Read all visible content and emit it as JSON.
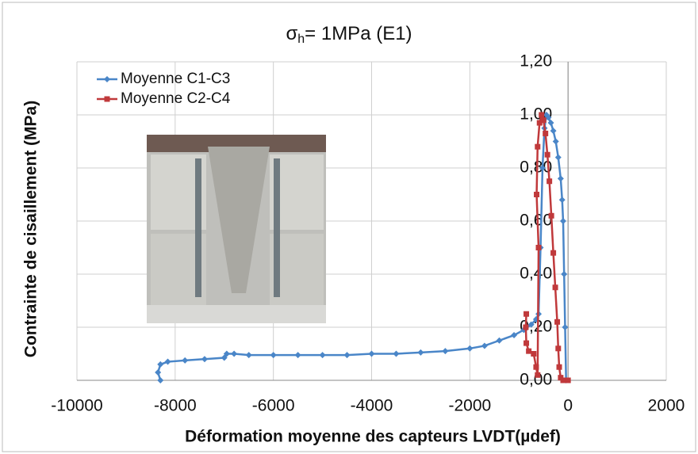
{
  "chart_data": {
    "type": "line",
    "title": "σ",
    "title_subscript": "h",
    "title_rest": "= 1MPa (E1)",
    "xlabel": "Déformation moyenne des capteurs LVDT(µdef)",
    "ylabel": "Contrainte de cisaillement (MPa)",
    "xlim": [
      -10000,
      2000
    ],
    "xticks": [
      -10000,
      -8000,
      -6000,
      -4000,
      -2000,
      0,
      2000
    ],
    "ylim": [
      0,
      1.2
    ],
    "yticks": [
      {
        "value": 0,
        "label": "0,00"
      },
      {
        "value": 0.2,
        "label": "0,20"
      },
      {
        "value": 0.4,
        "label": "0,40"
      },
      {
        "value": 0.6,
        "label": "0,60"
      },
      {
        "value": 0.8,
        "label": "0,80"
      },
      {
        "value": 1.0,
        "label": "1,00"
      },
      {
        "value": 1.2,
        "label": "1,20"
      }
    ],
    "grid": true,
    "legend": "top-left",
    "series": [
      {
        "name": "Moyenne C1-C3",
        "color": "#4a86c8",
        "marker": "diamond",
        "x": [
          -8300,
          -8350,
          -8300,
          -8150,
          -7800,
          -7400,
          -7000,
          -6950,
          -6800,
          -6500,
          -6000,
          -5500,
          -5000,
          -4500,
          -4000,
          -3500,
          -3000,
          -2500,
          -2000,
          -1700,
          -1400,
          -1100,
          -900,
          -750,
          -650,
          -600,
          -560,
          -520,
          -480,
          -440,
          -400,
          -350,
          -300,
          -250,
          -200,
          -150,
          -120,
          -100,
          -80,
          -60,
          -40
        ],
        "values": [
          0.0,
          0.03,
          0.06,
          0.07,
          0.075,
          0.08,
          0.085,
          0.1,
          0.1,
          0.095,
          0.095,
          0.095,
          0.095,
          0.095,
          0.1,
          0.1,
          0.105,
          0.11,
          0.12,
          0.13,
          0.15,
          0.17,
          0.19,
          0.21,
          0.23,
          0.25,
          0.5,
          0.8,
          0.95,
          1.0,
          0.99,
          0.97,
          0.94,
          0.9,
          0.84,
          0.76,
          0.68,
          0.6,
          0.4,
          0.2,
          0.0
        ]
      },
      {
        "name": "Moyenne C2-C4",
        "color": "#c0393b",
        "marker": "square",
        "x": [
          -850,
          -860,
          -850,
          -800,
          -700,
          -650,
          -620,
          -600,
          -640,
          -620,
          -580,
          -540,
          -500,
          -460,
          -420,
          -380,
          -340,
          -300,
          -260,
          -220,
          -200,
          -180,
          -150,
          -100,
          -50,
          0
        ],
        "values": [
          0.25,
          0.2,
          0.14,
          0.11,
          0.1,
          0.05,
          0.02,
          0.5,
          0.7,
          0.88,
          0.97,
          1.0,
          0.98,
          0.93,
          0.85,
          0.75,
          0.62,
          0.48,
          0.35,
          0.22,
          0.12,
          0.05,
          0.01,
          0.0,
          0.0,
          0.0
        ]
      }
    ]
  }
}
